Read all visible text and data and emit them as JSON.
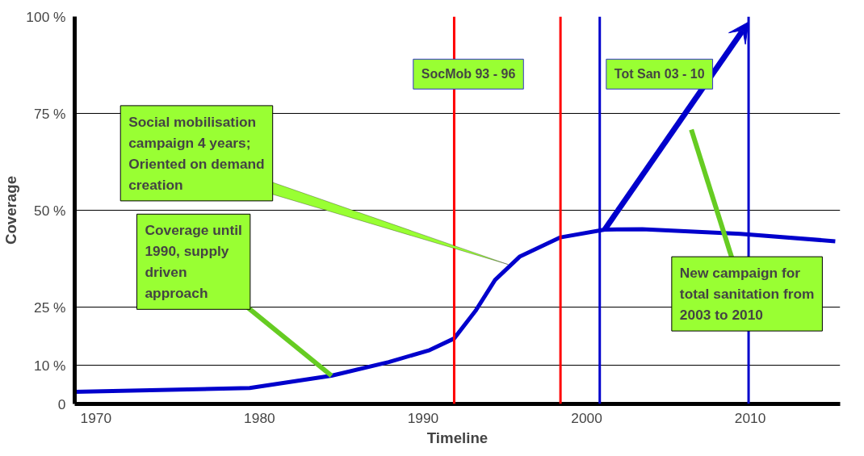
{
  "chart_data": {
    "type": "line",
    "xlabel": "Timeline",
    "ylabel": "Coverage",
    "xlim": [
      1968.7,
      2015.5
    ],
    "ylim": [
      0,
      100
    ],
    "xticks": [
      1970,
      1980,
      1990,
      2000,
      2010
    ],
    "yticks": [
      0,
      {
        "value": 10,
        "label": "10 %"
      },
      {
        "value": 25,
        "label": "25 %"
      },
      {
        "value": 50,
        "label": "50 %"
      },
      {
        "value": 75,
        "label": "75 %"
      },
      {
        "value": 100,
        "label": "100 %"
      }
    ],
    "grid": "y",
    "marker": "none",
    "line_style": "solid",
    "series": [
      {
        "color": "#0000cc",
        "x": [
          1968.7,
          1979.4,
          1984.4,
          1987.9,
          1990.4,
          1991.9,
          1993.2,
          1994.4,
          1995.9,
          1998.4,
          2001.1,
          2003.4,
          2009.4,
          2015.2
        ],
        "values": [
          3.1,
          4.1,
          7.3,
          10.8,
          13.9,
          16.9,
          24,
          32,
          38,
          43,
          45,
          45.1,
          43.9,
          42
        ]
      }
    ],
    "ref_lines": [
      {
        "axis": "x",
        "value": 1991.9,
        "color": "#ff0000"
      },
      {
        "axis": "x",
        "value": 1998.4,
        "color": "#ff0000"
      },
      {
        "axis": "x",
        "value": 2000.8,
        "color": "#0000cc"
      },
      {
        "axis": "x",
        "value": 2009.9,
        "color": "#0000cc"
      }
    ],
    "annotations": [
      {
        "text": "Social mobilisation\ncampaign 4 years;\nOriented on demand\ncreation",
        "x": 1995.2,
        "y": 36
      },
      {
        "text": "Coverage until\n1990, supply\ndriven\napproach",
        "x": 1984.4,
        "y": 7.3
      },
      "New campaign for\ntotal sanitation from\n2003 to 2010",
      "SocMob 93 - 96",
      "Tot San 03 - 10"
    ]
  }
}
